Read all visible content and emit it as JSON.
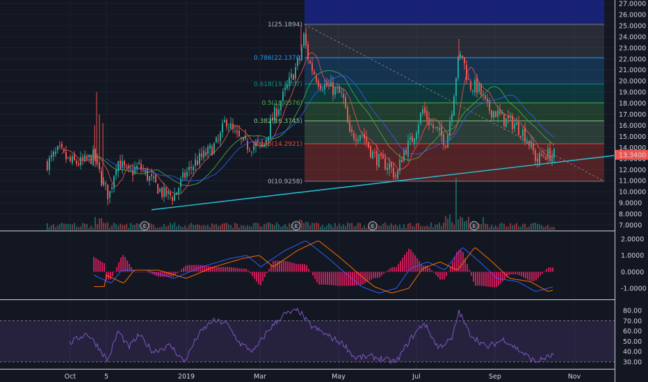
{
  "chart_data": {
    "type": "candlestick",
    "price_ticks": [
      "27.0000",
      "26.0000",
      "25.0000",
      "24.0000",
      "23.0000",
      "22.0000",
      "21.0000",
      "20.0000",
      "19.0000",
      "18.0000",
      "17.0000",
      "16.0000",
      "15.0000",
      "14.0000",
      "13.0000",
      "12.0000",
      "11.0000",
      "10.0000",
      "9.0000",
      "8.0000",
      "7.0000"
    ],
    "last_price": "13.3400",
    "macd_ticks": [
      "2.0000",
      "1.0000",
      "0.0000",
      "-1.0000"
    ],
    "rsi_ticks": [
      "80.00",
      "70.00",
      "60.00",
      "50.00",
      "40.00",
      "30.00"
    ],
    "x_labels": [
      "Oct",
      "5",
      "2019",
      "Mar",
      "May",
      "Jul",
      "Sep",
      "Nov"
    ],
    "earnings_marker": "E",
    "fib_levels": [
      {
        "label": "1(25.1894)",
        "value": 25.1894
      },
      {
        "label": "0.786(22.1370)",
        "value": 22.137
      },
      {
        "label": "0.618(19.7407)",
        "value": 19.7407
      },
      {
        "label": "0.5(18.0576)",
        "value": 18.0576
      },
      {
        "label": "0.382(16.3745)",
        "value": 16.3745
      },
      {
        "label": "0.236(14.2921)",
        "value": 14.2921
      },
      {
        "label": "0(10.9258)",
        "value": 10.9258
      }
    ],
    "price_ylim": [
      6.5,
      27.2
    ],
    "macd_ylim": [
      -1.6,
      2.3
    ],
    "rsi_ylim": [
      22,
      87
    ],
    "rsi_band": [
      30,
      70
    ],
    "colors": {
      "up": "#26a69a",
      "down": "#ef5350",
      "fib1": "#787b86",
      "fib2": "#2196f3",
      "fib3": "#009688",
      "fib4": "#4caf50",
      "fib5": "#81c784",
      "fib6": "#f44336",
      "macd": "#2962ff",
      "signal": "#ff6d00",
      "rsi": "#7e57c2"
    }
  }
}
